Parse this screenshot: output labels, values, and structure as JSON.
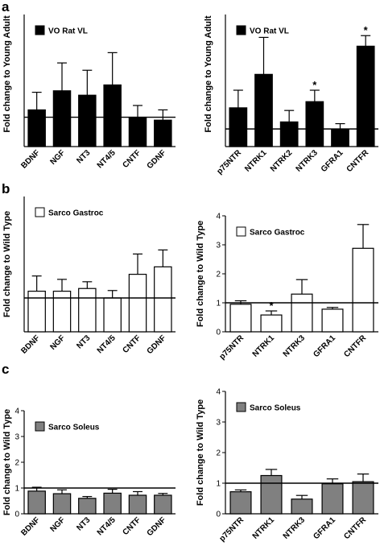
{
  "panels": [
    {
      "letter": "a"
    },
    {
      "letter": "b"
    },
    {
      "letter": "c"
    }
  ],
  "chart_data": [
    {
      "type": "bar",
      "panel": "a",
      "legend": "VO Rat VL",
      "ylabel": "Fold change to Young Adult",
      "categories": [
        "BDNF",
        "NGF",
        "NT3",
        "NT4/5",
        "CNTF",
        "GDNF"
      ],
      "values": [
        1.25,
        1.9,
        1.75,
        2.1,
        1.0,
        0.9
      ],
      "errors": [
        0.6,
        0.95,
        0.85,
        1.1,
        0.4,
        0.35
      ],
      "significant": [
        false,
        false,
        false,
        false,
        false,
        false
      ],
      "star_symbol": "*",
      "ylim": [
        0,
        4.5
      ],
      "yticks": [],
      "reference_line": 1,
      "bar_color": "#000000"
    },
    {
      "type": "bar",
      "panel": "a",
      "legend": "VO Rat VL",
      "ylabel": "Fold change to Young Adult",
      "categories": [
        "p75NTR",
        "NTRK1",
        "NTRK2",
        "NTRK3",
        "GFRA1",
        "CNTFR"
      ],
      "values": [
        2.2,
        4.1,
        1.4,
        2.55,
        1.0,
        5.7
      ],
      "errors": [
        1.0,
        2.1,
        0.65,
        0.65,
        0.3,
        0.6
      ],
      "significant": [
        false,
        false,
        false,
        true,
        false,
        true
      ],
      "star_symbol": "*",
      "ylim": [
        0,
        7.5
      ],
      "yticks": [],
      "reference_line": 1,
      "bar_color": "#000000"
    },
    {
      "type": "bar",
      "panel": "b",
      "legend": "Sarco Gastroc",
      "ylabel": "Fold change to Wild Type",
      "categories": [
        "BDNF",
        "NGF",
        "NT3",
        "NT4/5",
        "CNTF",
        "GDNF"
      ],
      "values": [
        1.2,
        1.2,
        1.28,
        1.0,
        1.7,
        1.92
      ],
      "errors": [
        0.45,
        0.35,
        0.2,
        0.22,
        0.6,
        0.5
      ],
      "significant": [
        false,
        false,
        false,
        false,
        false,
        false
      ],
      "star_symbol": "*",
      "ylim": [
        0,
        4
      ],
      "yticks": [],
      "reference_line": 1,
      "bar_color": "#ffffff"
    },
    {
      "type": "bar",
      "panel": "b",
      "legend": "Sarco Gastroc",
      "ylabel": "Fold change to Wild Type",
      "categories": [
        "p75NTR",
        "NTRK1",
        "NTRK3",
        "GFRA1",
        "CNTFR"
      ],
      "values": [
        0.95,
        0.58,
        1.3,
        0.78,
        2.88
      ],
      "errors": [
        0.12,
        0.14,
        0.5,
        0.06,
        0.82
      ],
      "significant": [
        false,
        true,
        false,
        false,
        false
      ],
      "star_symbol": "*",
      "ylim": [
        0,
        4
      ],
      "yticks": [
        "0",
        "1",
        "2",
        "3",
        "4"
      ],
      "reference_line": 1,
      "bar_color": "#ffffff"
    },
    {
      "type": "bar",
      "panel": "c",
      "legend": "Sarco Soleus",
      "ylabel": "Fold change to Wild Type",
      "categories": [
        "BDNF",
        "NGF",
        "NT3",
        "NT4/5",
        "CNTF",
        "GDNF"
      ],
      "values": [
        0.88,
        0.78,
        0.6,
        0.8,
        0.72,
        0.72
      ],
      "errors": [
        0.15,
        0.15,
        0.07,
        0.15,
        0.14,
        0.07
      ],
      "significant": [
        false,
        false,
        false,
        false,
        false,
        false
      ],
      "star_symbol": "*",
      "ylim": [
        0,
        4
      ],
      "yticks": [
        "0",
        "1",
        "2",
        "3",
        "4"
      ],
      "reference_line": 1,
      "bar_color": "#808080"
    },
    {
      "type": "bar",
      "panel": "c",
      "legend": "Sarco Soleus",
      "ylabel": "Fold change to Wild Type",
      "categories": [
        "p75NTR",
        "NTRK1",
        "NTRK3",
        "GFRA1",
        "CNTFR"
      ],
      "values": [
        0.72,
        1.25,
        0.48,
        0.98,
        1.05
      ],
      "errors": [
        0.06,
        0.2,
        0.12,
        0.16,
        0.25
      ],
      "significant": [
        false,
        false,
        false,
        false,
        false
      ],
      "star_symbol": "*",
      "ylim": [
        0,
        4
      ],
      "yticks": [
        "0",
        "1",
        "2",
        "3",
        "4"
      ],
      "reference_line": 1,
      "bar_color": "#808080"
    }
  ]
}
